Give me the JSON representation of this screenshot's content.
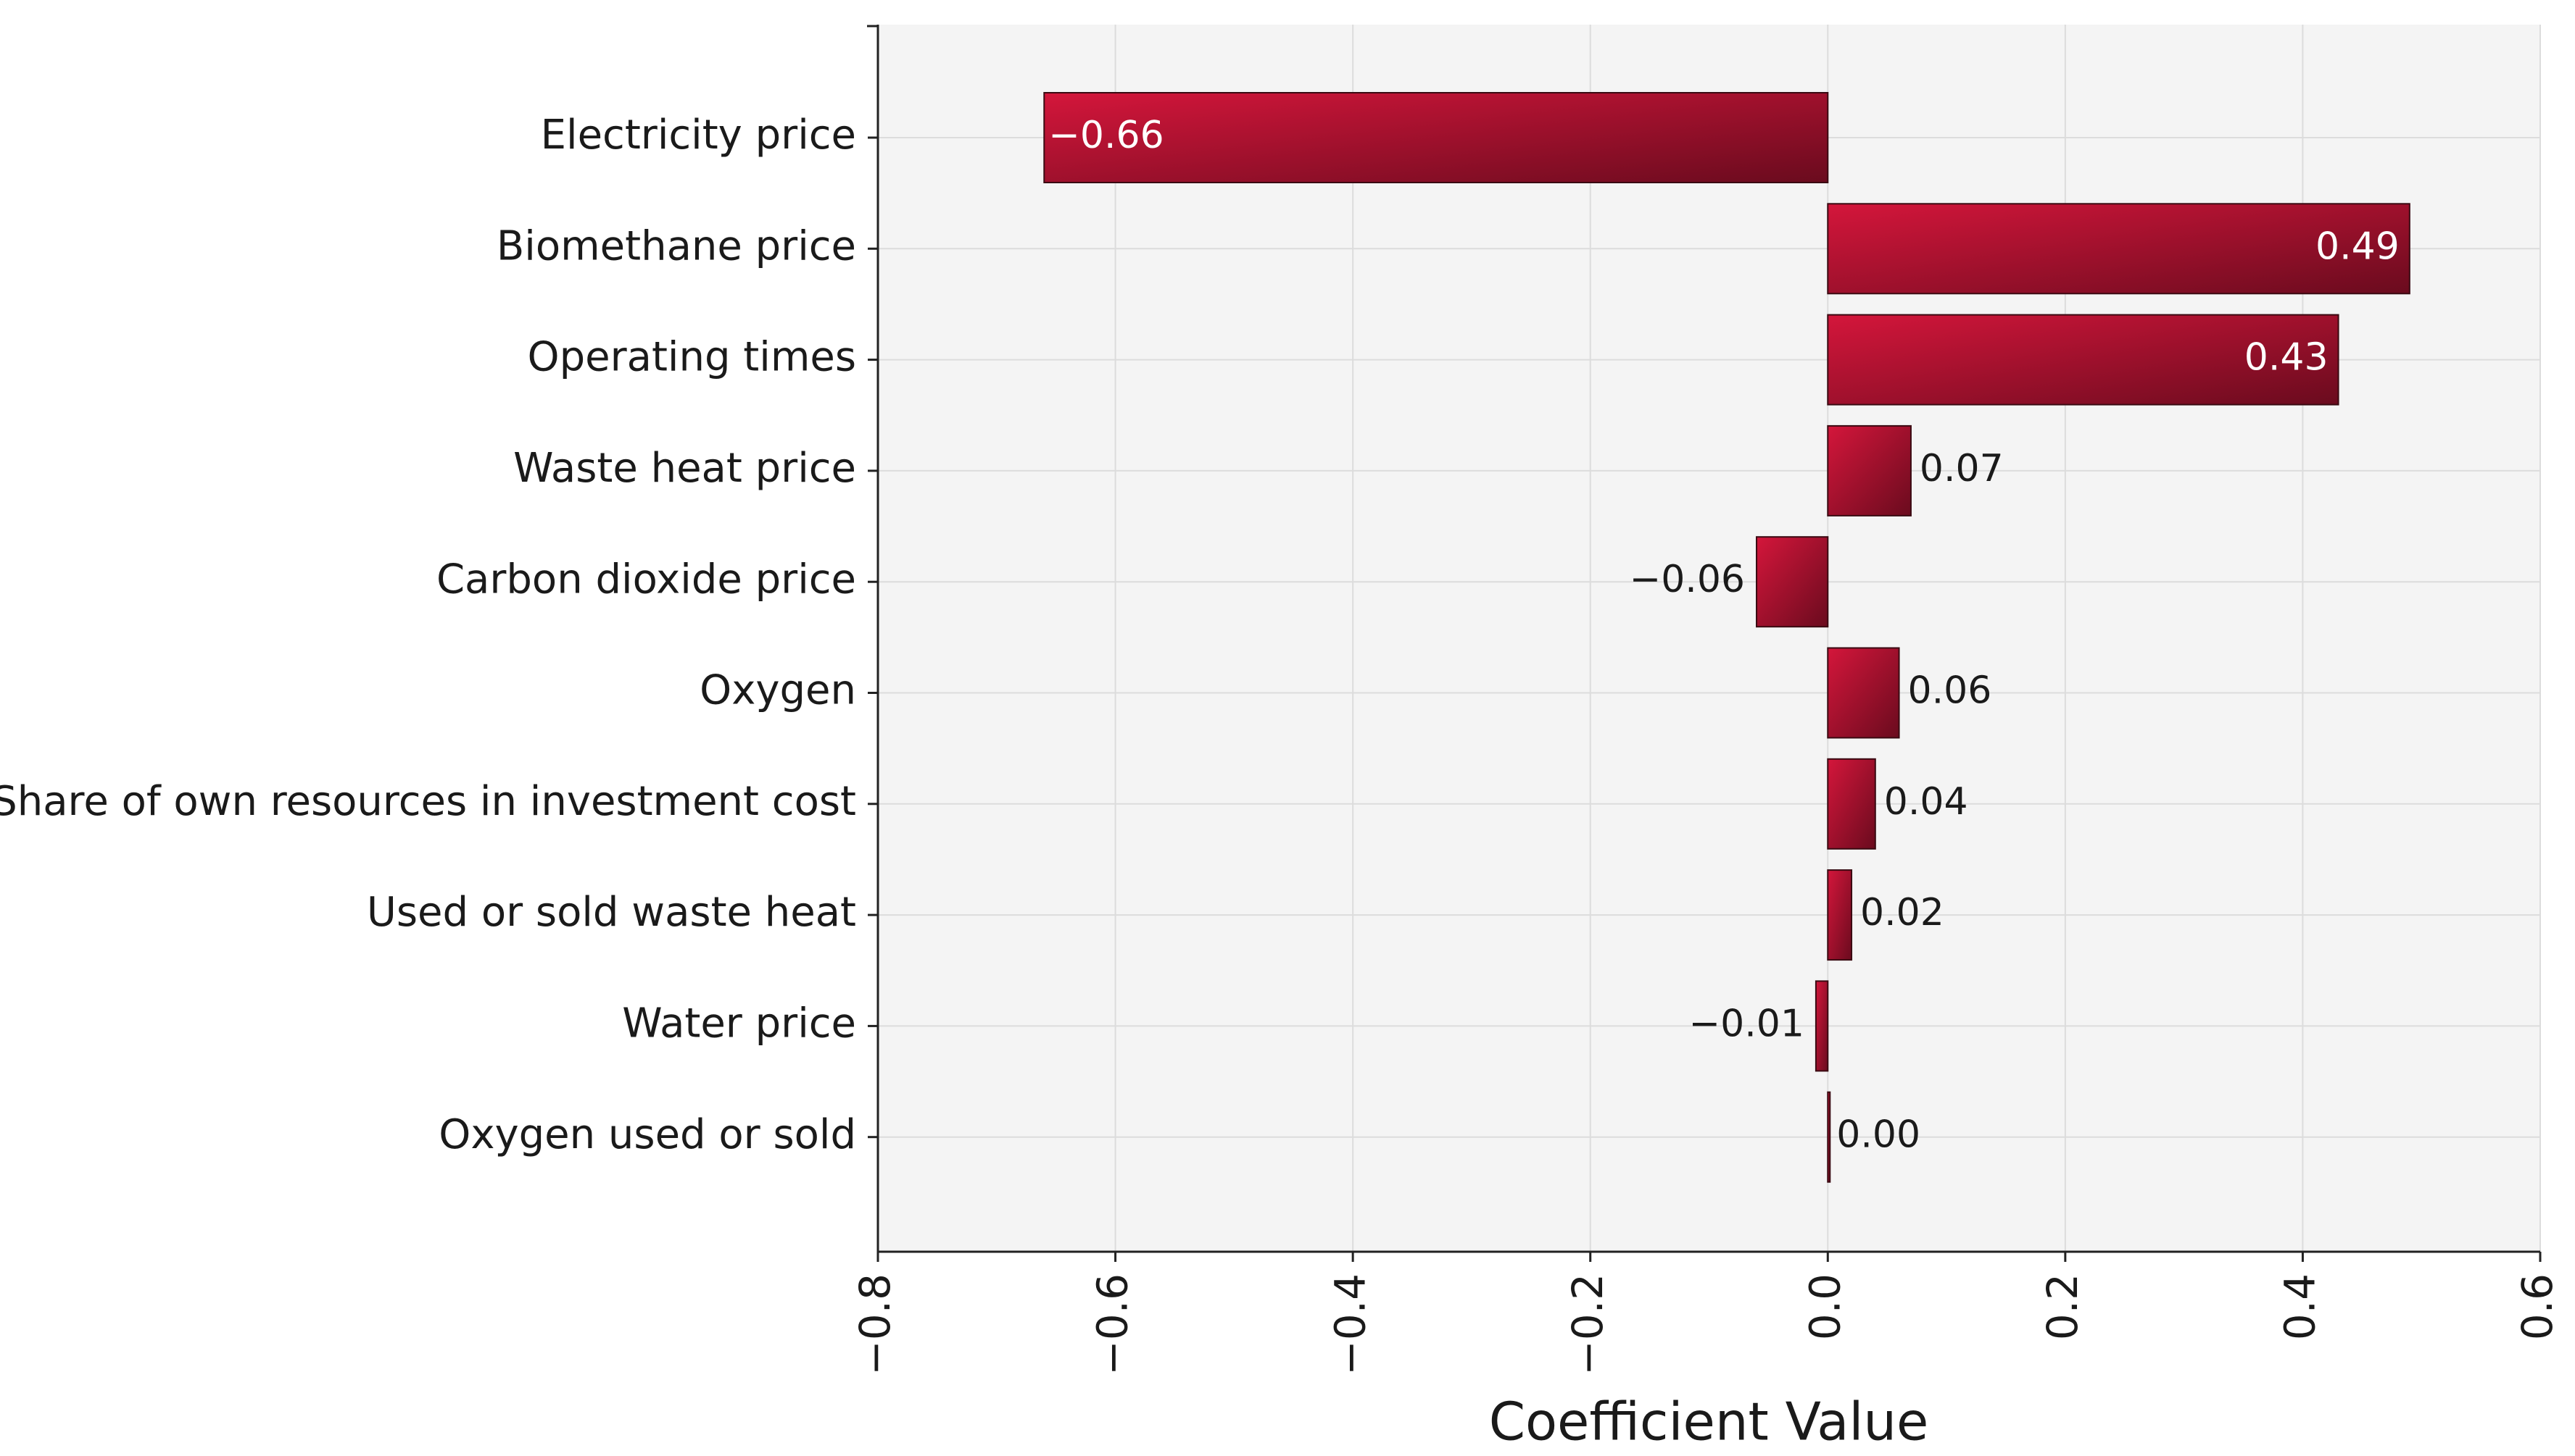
{
  "chart_data": {
    "type": "hbar",
    "x_label": "Coefficient Value",
    "categories": [
      "Electricity price",
      "Biomethane price",
      "Operating times",
      "Waste heat price",
      "Carbon dioxide price",
      "Oxygen",
      "Share of own resources in investment cost",
      "Used or sold waste heat",
      "Water price",
      "Oxygen used or sold"
    ],
    "values": [
      -0.66,
      0.49,
      0.43,
      0.07,
      -0.06,
      0.06,
      0.04,
      0.02,
      -0.01,
      0
    ],
    "value_labels": [
      "−0.66",
      "0.49",
      "0.43",
      "0.07",
      "−0.06",
      "0.06",
      "0.04",
      "0.02",
      "−0.01",
      "0.00"
    ],
    "color": "#d4163b",
    "xlim": [
      -0.8,
      0.6
    ],
    "xticks": [
      {
        "value": -0.8,
        "label": "−0.8"
      },
      {
        "value": -0.6,
        "label": "−0.6"
      },
      {
        "value": -0.4,
        "label": "−0.4"
      },
      {
        "value": -0.2,
        "label": "−0.2"
      },
      {
        "value": 0,
        "label": "0.0"
      },
      0.2,
      0.4,
      0.6
    ],
    "grid": true
  }
}
